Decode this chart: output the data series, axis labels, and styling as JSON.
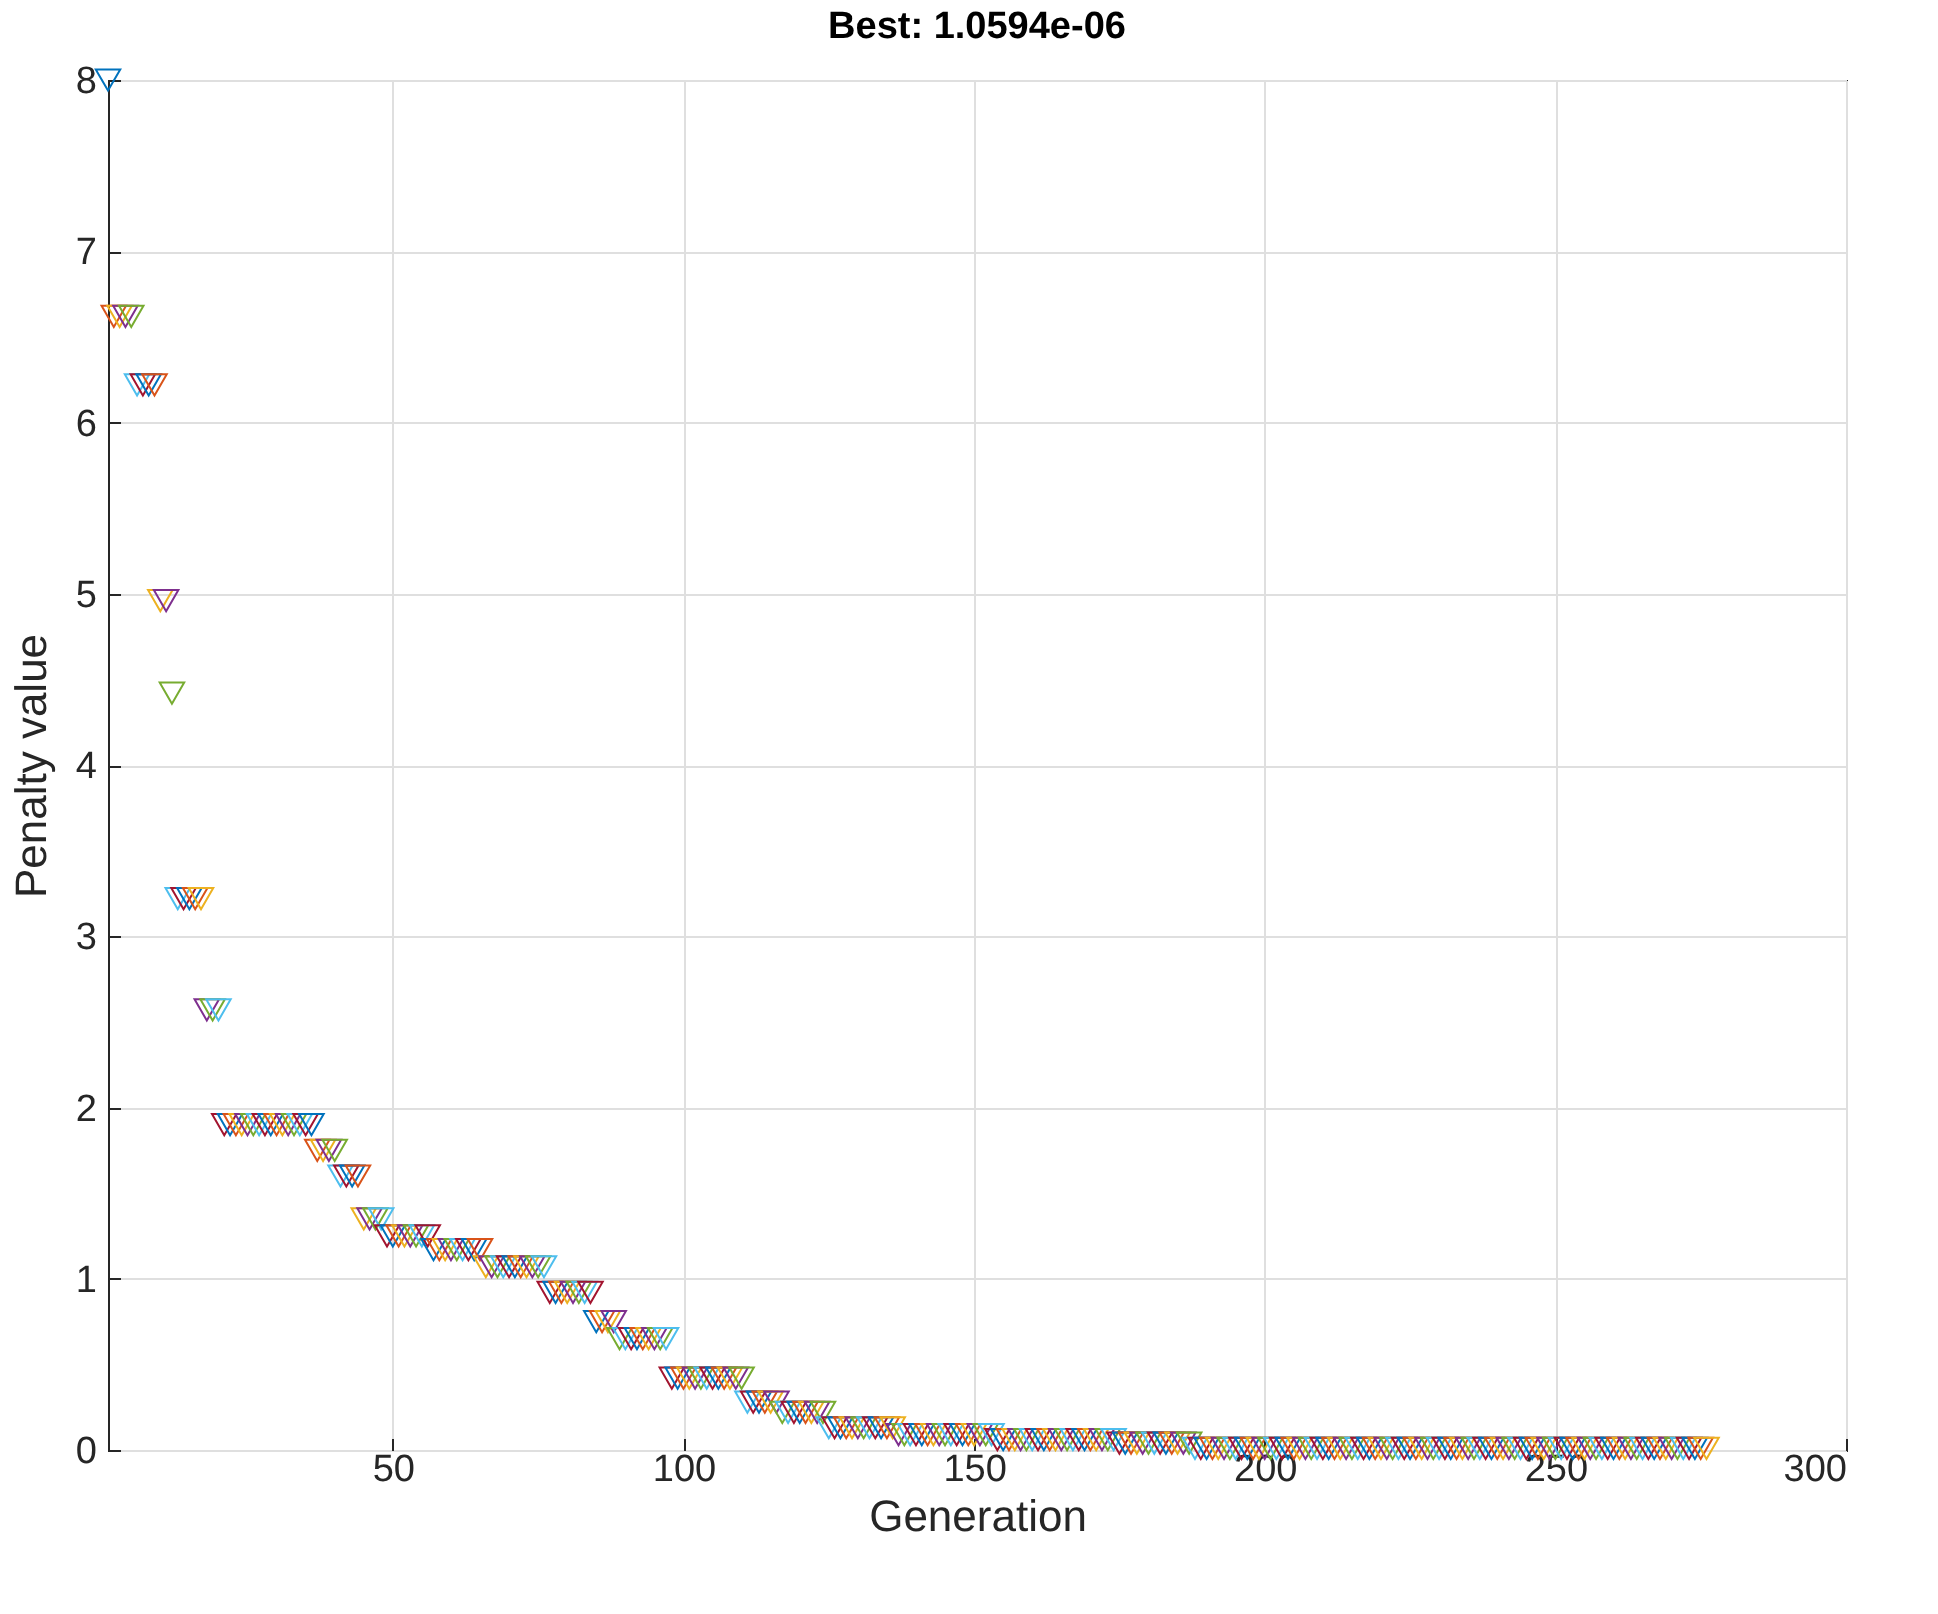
{
  "chart_data": {
    "type": "scatter",
    "title": "Best: 1.0594e-06",
    "xlabel": "Generation",
    "ylabel": "Penalty value",
    "marker": "triangle",
    "grid": true,
    "xlim": [
      1,
      300
    ],
    "xticks": [
      50,
      100,
      150,
      200,
      250,
      300
    ],
    "ylim": [
      0,
      8
    ],
    "yticks": [
      0,
      1,
      2,
      3,
      4,
      5,
      6,
      7,
      8
    ],
    "x": [
      1,
      2,
      3,
      4,
      5,
      6,
      7,
      8,
      9,
      10,
      11,
      12,
      13,
      14,
      15,
      16,
      17,
      18,
      19,
      20,
      21,
      22,
      23,
      24,
      25,
      26,
      27,
      28,
      29,
      30,
      31,
      32,
      33,
      34,
      35,
      36,
      37,
      38,
      39,
      40,
      41,
      42,
      43,
      44,
      45,
      46,
      47,
      48,
      49,
      50,
      51,
      52,
      53,
      54,
      55,
      56,
      57,
      58,
      59,
      60,
      61,
      62,
      63,
      64,
      65,
      66,
      67,
      68,
      69,
      70,
      71,
      72,
      73,
      74,
      75,
      76,
      77,
      78,
      79,
      80,
      81,
      82,
      83,
      84,
      85,
      86,
      87,
      88,
      89,
      90,
      91,
      92,
      93,
      94,
      95,
      96,
      97,
      98,
      99,
      100,
      101,
      102,
      103,
      104,
      105,
      106,
      107,
      108,
      109,
      110,
      111,
      112,
      113,
      114,
      115,
      116,
      117,
      118,
      119,
      120,
      121,
      122,
      123,
      124,
      125,
      126,
      127,
      128,
      129,
      130,
      131,
      132,
      133,
      134,
      135,
      136,
      137,
      138,
      139,
      140,
      141,
      142,
      143,
      144,
      145,
      146,
      147,
      148,
      149,
      150,
      151,
      152,
      153,
      154,
      155,
      156,
      157,
      158,
      159,
      160,
      161,
      162,
      163,
      164,
      165,
      166,
      167,
      168,
      169,
      170,
      171,
      172,
      173,
      174,
      175,
      176,
      177,
      178,
      179,
      180,
      181,
      182,
      183,
      184,
      185,
      186,
      187,
      188,
      189,
      190,
      191,
      192,
      193,
      194,
      195,
      196,
      197,
      198,
      199,
      200,
      201,
      202,
      203,
      204,
      205,
      206,
      207,
      208,
      209,
      210,
      211,
      212,
      213,
      214,
      215,
      216,
      217,
      218,
      219,
      220,
      221,
      222,
      223,
      224,
      225,
      226,
      227,
      228,
      229,
      230,
      231,
      232,
      233,
      234,
      235,
      236,
      237,
      238,
      239,
      240,
      241,
      242,
      243,
      244,
      245,
      246,
      247,
      248,
      249,
      250,
      251,
      252,
      253,
      254,
      255,
      256,
      257,
      258,
      259,
      260,
      261,
      262,
      263,
      264,
      265,
      266,
      267,
      268,
      269,
      270,
      271,
      272,
      273,
      274,
      275,
      276
    ],
    "values": [
      8,
      6.62,
      6.62,
      6.62,
      6.62,
      6.22,
      6.22,
      6.22,
      6.22,
      4.96,
      4.96,
      4.42,
      3.22,
      3.22,
      3.22,
      3.22,
      3.22,
      2.57,
      2.57,
      2.57,
      1.9,
      1.9,
      1.9,
      1.9,
      1.9,
      1.9,
      1.9,
      1.9,
      1.9,
      1.9,
      1.9,
      1.9,
      1.9,
      1.9,
      1.9,
      1.9,
      1.75,
      1.75,
      1.75,
      1.75,
      1.6,
      1.6,
      1.6,
      1.6,
      1.35,
      1.35,
      1.35,
      1.35,
      1.25,
      1.25,
      1.25,
      1.25,
      1.25,
      1.25,
      1.25,
      1.25,
      1.17,
      1.17,
      1.17,
      1.17,
      1.17,
      1.17,
      1.17,
      1.17,
      1.17,
      1.07,
      1.07,
      1.07,
      1.07,
      1.07,
      1.07,
      1.07,
      1.07,
      1.07,
      1.07,
      1.07,
      0.92,
      0.92,
      0.92,
      0.92,
      0.92,
      0.92,
      0.92,
      0.92,
      0.75,
      0.75,
      0.75,
      0.75,
      0.65,
      0.65,
      0.65,
      0.65,
      0.65,
      0.65,
      0.65,
      0.65,
      0.65,
      0.42,
      0.42,
      0.42,
      0.42,
      0.42,
      0.42,
      0.42,
      0.42,
      0.42,
      0.42,
      0.42,
      0.42,
      0.42,
      0.28,
      0.28,
      0.28,
      0.28,
      0.28,
      0.28,
      0.22,
      0.22,
      0.22,
      0.22,
      0.22,
      0.22,
      0.22,
      0.22,
      0.13,
      0.13,
      0.13,
      0.13,
      0.13,
      0.13,
      0.13,
      0.13,
      0.13,
      0.13,
      0.13,
      0.13,
      0.09,
      0.09,
      0.09,
      0.09,
      0.09,
      0.09,
      0.09,
      0.09,
      0.09,
      0.09,
      0.09,
      0.09,
      0.09,
      0.09,
      0.09,
      0.09,
      0.09,
      0.06,
      0.06,
      0.06,
      0.06,
      0.06,
      0.06,
      0.06,
      0.06,
      0.06,
      0.06,
      0.06,
      0.06,
      0.06,
      0.06,
      0.06,
      0.06,
      0.06,
      0.06,
      0.06,
      0.06,
      0.06,
      0.04,
      0.04,
      0.04,
      0.04,
      0.04,
      0.04,
      0.04,
      0.04,
      0.04,
      0.04,
      0.04,
      0.04,
      0.04,
      0.01,
      0.01,
      0.01,
      0.01,
      0.01,
      0.01,
      0.01,
      0.01,
      0.01,
      0.01,
      0.01,
      0.01,
      0.01,
      0.01,
      0.01,
      0.01,
      0.01,
      0.01,
      0.01,
      0.01,
      0.01,
      0.01,
      0.01,
      0.01,
      0.01,
      0.01,
      0.01,
      0.01,
      0.01,
      0.01,
      0.01,
      0.01,
      0.01,
      0.01,
      0.01,
      0.01,
      0.01,
      0.01,
      0.01,
      0.01,
      0.01,
      0.01,
      0.01,
      0.01,
      0.01,
      0.01,
      0.01,
      0.01,
      0.01,
      0.01,
      0.01,
      0.01,
      0.01,
      0.01,
      0.01,
      0.01,
      0.01,
      0.01,
      0.01,
      0.01,
      0.01,
      0.01,
      0.01,
      0.01,
      0.01,
      0.01,
      0.01,
      0.01,
      0.01,
      0.01,
      0.01,
      0.01,
      0.01,
      0.01,
      0.01,
      0.01,
      0.01,
      0.01,
      0.01,
      0.01,
      0.01,
      0.01,
      0.01,
      0.01,
      0.01,
      0.01,
      0.01,
      0.01,
      0.01
    ],
    "colors": [
      "#0072bd",
      "#d95319",
      "#edb120",
      "#7e2f8e",
      "#77ac30",
      "#4dbeee",
      "#a2142f",
      "#0072bd",
      "#d95319",
      "#edb120",
      "#7e2f8e",
      "#77ac30",
      "#4dbeee",
      "#a2142f",
      "#0072bd",
      "#d95319",
      "#edb120",
      "#7e2f8e",
      "#77ac30",
      "#4dbeee",
      "#a2142f",
      "#0072bd",
      "#d95319",
      "#edb120",
      "#7e2f8e",
      "#77ac30",
      "#4dbeee",
      "#a2142f",
      "#0072bd",
      "#d95319",
      "#edb120",
      "#7e2f8e",
      "#77ac30",
      "#4dbeee",
      "#a2142f",
      "#0072bd",
      "#d95319",
      "#edb120",
      "#7e2f8e",
      "#77ac30",
      "#4dbeee",
      "#a2142f",
      "#0072bd",
      "#d95319",
      "#edb120",
      "#7e2f8e",
      "#77ac30",
      "#4dbeee",
      "#a2142f",
      "#0072bd",
      "#d95319",
      "#edb120",
      "#7e2f8e",
      "#77ac30",
      "#4dbeee",
      "#a2142f",
      "#0072bd",
      "#d95319",
      "#edb120",
      "#7e2f8e",
      "#77ac30",
      "#4dbeee",
      "#a2142f",
      "#0072bd",
      "#d95319",
      "#edb120",
      "#7e2f8e",
      "#77ac30",
      "#4dbeee",
      "#a2142f",
      "#0072bd",
      "#d95319",
      "#edb120",
      "#7e2f8e",
      "#77ac30",
      "#4dbeee",
      "#a2142f",
      "#0072bd",
      "#d95319",
      "#edb120",
      "#7e2f8e",
      "#77ac30",
      "#4dbeee",
      "#a2142f",
      "#0072bd",
      "#d95319",
      "#edb120",
      "#7e2f8e",
      "#77ac30",
      "#4dbeee",
      "#a2142f",
      "#0072bd",
      "#d95319",
      "#edb120",
      "#7e2f8e",
      "#77ac30",
      "#4dbeee",
      "#a2142f",
      "#0072bd",
      "#d95319",
      "#edb120",
      "#7e2f8e",
      "#77ac30",
      "#4dbeee",
      "#a2142f",
      "#0072bd",
      "#d95319",
      "#edb120",
      "#7e2f8e",
      "#77ac30",
      "#4dbeee",
      "#a2142f",
      "#0072bd",
      "#d95319",
      "#edb120",
      "#7e2f8e",
      "#77ac30",
      "#4dbeee",
      "#a2142f",
      "#0072bd",
      "#d95319",
      "#edb120",
      "#7e2f8e",
      "#77ac30",
      "#4dbeee",
      "#a2142f",
      "#0072bd",
      "#d95319",
      "#edb120",
      "#7e2f8e",
      "#77ac30",
      "#4dbeee",
      "#a2142f",
      "#0072bd",
      "#d95319",
      "#edb120",
      "#7e2f8e",
      "#77ac30",
      "#4dbeee",
      "#a2142f",
      "#0072bd",
      "#d95319",
      "#edb120",
      "#7e2f8e",
      "#77ac30",
      "#4dbeee",
      "#a2142f",
      "#0072bd",
      "#d95319",
      "#edb120",
      "#7e2f8e",
      "#77ac30",
      "#4dbeee",
      "#a2142f",
      "#0072bd",
      "#d95319",
      "#edb120",
      "#7e2f8e",
      "#77ac30",
      "#4dbeee",
      "#a2142f",
      "#0072bd",
      "#d95319",
      "#edb120",
      "#7e2f8e",
      "#77ac30",
      "#4dbeee",
      "#a2142f",
      "#0072bd",
      "#d95319",
      "#edb120",
      "#7e2f8e",
      "#77ac30",
      "#4dbeee",
      "#a2142f",
      "#0072bd",
      "#d95319",
      "#edb120",
      "#7e2f8e",
      "#77ac30",
      "#4dbeee",
      "#a2142f",
      "#0072bd",
      "#d95319",
      "#edb120",
      "#7e2f8e",
      "#77ac30",
      "#4dbeee",
      "#a2142f",
      "#0072bd",
      "#d95319",
      "#edb120",
      "#7e2f8e",
      "#77ac30",
      "#4dbeee",
      "#a2142f",
      "#0072bd",
      "#d95319",
      "#edb120",
      "#7e2f8e",
      "#77ac30",
      "#4dbeee",
      "#a2142f",
      "#0072bd",
      "#d95319",
      "#edb120",
      "#7e2f8e",
      "#77ac30",
      "#4dbeee",
      "#a2142f",
      "#0072bd",
      "#d95319",
      "#edb120",
      "#7e2f8e",
      "#77ac30",
      "#4dbeee",
      "#a2142f",
      "#0072bd",
      "#d95319",
      "#edb120",
      "#7e2f8e",
      "#77ac30",
      "#4dbeee",
      "#a2142f",
      "#0072bd",
      "#d95319",
      "#edb120",
      "#7e2f8e",
      "#77ac30",
      "#4dbeee",
      "#a2142f",
      "#0072bd",
      "#d95319",
      "#edb120",
      "#7e2f8e",
      "#77ac30",
      "#4dbeee",
      "#a2142f",
      "#0072bd",
      "#d95319",
      "#edb120",
      "#7e2f8e",
      "#77ac30",
      "#4dbeee",
      "#a2142f",
      "#0072bd",
      "#d95319",
      "#edb120",
      "#7e2f8e",
      "#77ac30",
      "#4dbeee",
      "#a2142f",
      "#0072bd",
      "#d95319",
      "#edb120",
      "#7e2f8e",
      "#77ac30",
      "#4dbeee",
      "#a2142f",
      "#0072bd",
      "#d95319",
      "#edb120",
      "#7e2f8e",
      "#77ac30",
      "#4dbeee",
      "#a2142f",
      "#0072bd",
      "#d95319",
      "#edb120",
      "#7e2f8e",
      "#77ac30",
      "#4dbeee",
      "#a2142f",
      "#0072bd",
      "#d95319",
      "#edb120"
    ]
  }
}
